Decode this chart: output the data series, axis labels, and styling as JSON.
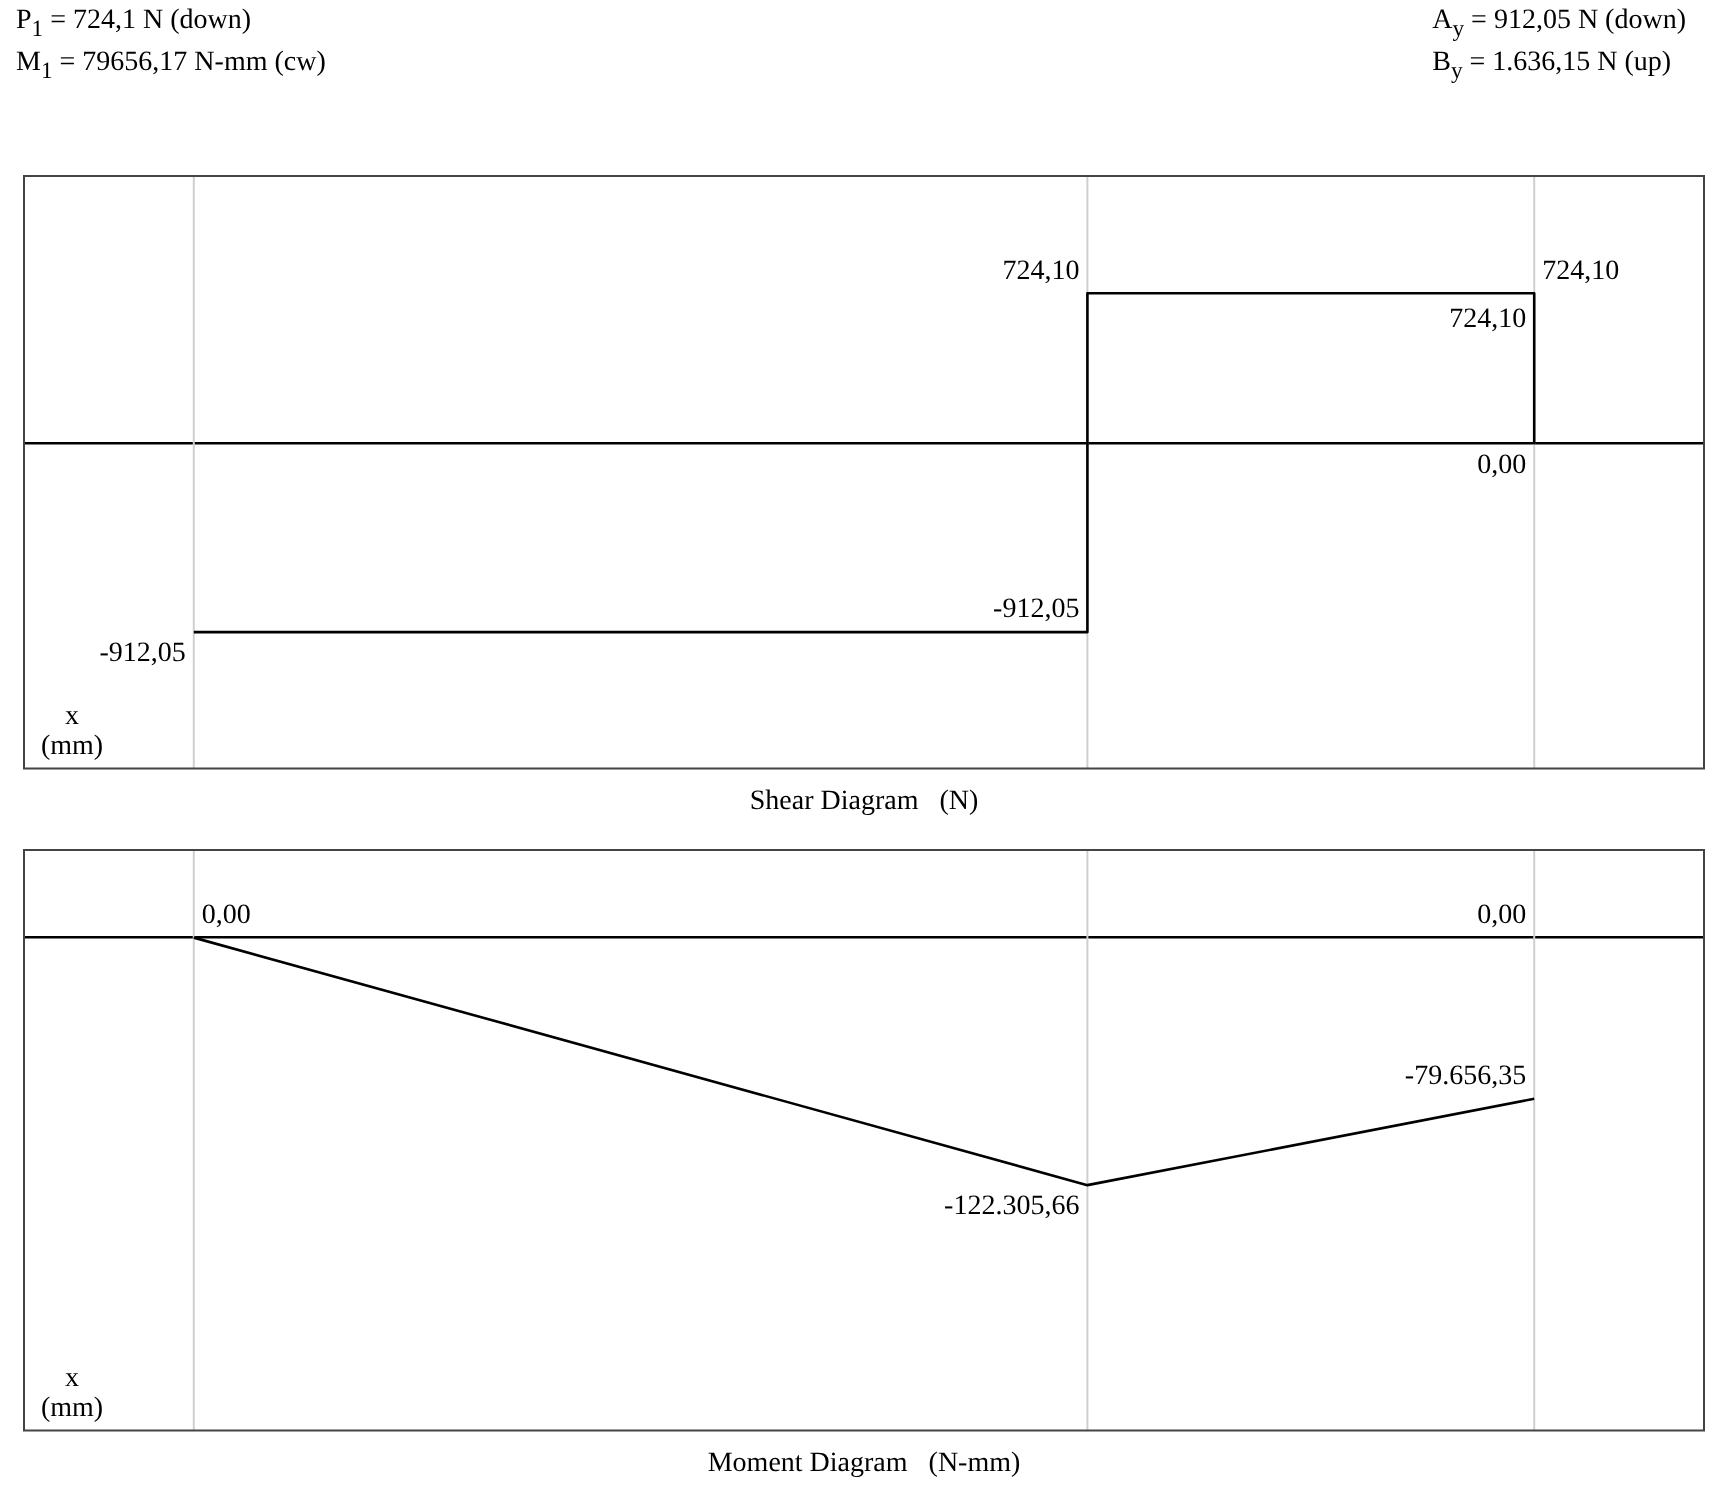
{
  "chart_data": [
    {
      "type": "other",
      "annotations": [
        "P$_{1}$ = 724,1 N (down)",
        "A$_{y}$ =  912,05 N (down)",
        "M$_{1}$ = 79656,17 N-mm (cw)",
        "B$_{y}$ = 1.636,15 N (up)"
      ]
    },
    {
      "type": "step",
      "title": "Shear Diagram   (N)",
      "xlabel": "x (mm)",
      "tick_labels": false,
      "grid": "x",
      "marker": "none",
      "legend": false,
      "categories": [
        null,
        null,
        null,
        null
      ],
      "ylim": [
        -1570,
        1290
      ],
      "annotations": [
        "-912,05",
        "724,10",
        "724,10"
      ],
      "series": [
        {
          "color": "#000000",
          "values": [
            -912.05,
            null,
            724.1,
            0
          ],
          "value_labels": [
            "-912,05",
            null,
            "724,10",
            "0,00"
          ]
        }
      ]
    },
    {
      "type": "line",
      "title": "Moment Diagram   (N-mm)",
      "xlabel": "x (mm)",
      "tick_labels": false,
      "grid": "x",
      "marker": "none",
      "legend": false,
      "categories": [
        null,
        null,
        null,
        null
      ],
      "ylim": [
        -243500,
        43300
      ],
      "annotations": [
        "0,00"
      ],
      "series": [
        {
          "color": "#000000",
          "values": [
            0,
            null,
            -122305.66,
            -79656.35
          ],
          "value_labels": [
            "0,00",
            null,
            "-122.305,66",
            "-79.656,35"
          ]
        }
      ]
    }
  ]
}
